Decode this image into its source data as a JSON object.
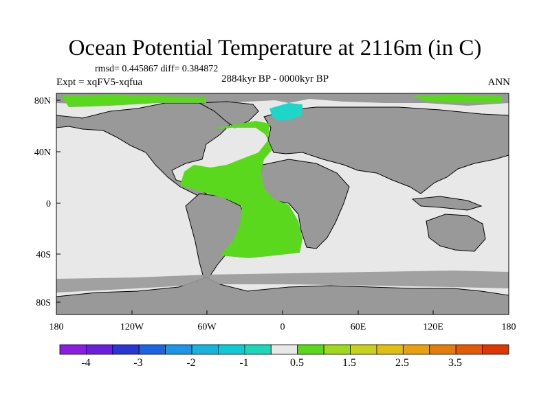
{
  "title": "Ocean Potential Temperature at 2116m (in C)",
  "stats": "rmsd= 0.445867 diff= 0.384872",
  "subtitle": "2884kyr BP - 0000kyr BP",
  "experiment": "Expt = xqFV5-xqfua",
  "season": "ANN",
  "lat_ticks": [
    "80N",
    "40N",
    "0",
    "40S",
    "80S"
  ],
  "lon_ticks": [
    "180",
    "120W",
    "60W",
    "0",
    "60E",
    "120E",
    "180"
  ],
  "colorbar": {
    "colors": [
      "#8a1ee0",
      "#6a20d8",
      "#2a36d0",
      "#1e64e0",
      "#1e96e6",
      "#18b4dc",
      "#12c8d2",
      "#1ed6b8",
      "#e8e8e8",
      "#5ad81e",
      "#a0d820",
      "#c8d21e",
      "#e0be14",
      "#e8a010",
      "#e47c0c",
      "#e05a08",
      "#dc3806"
    ],
    "labels": [
      "-4",
      "-3",
      "-2",
      "-1",
      "0.5",
      "1.5",
      "2.5",
      "3.5"
    ]
  },
  "legend_colors": {
    "land": "#999999",
    "ocean": "#e8e8e8",
    "warm": "#5ad81e",
    "cool": "#1ed6c8"
  }
}
